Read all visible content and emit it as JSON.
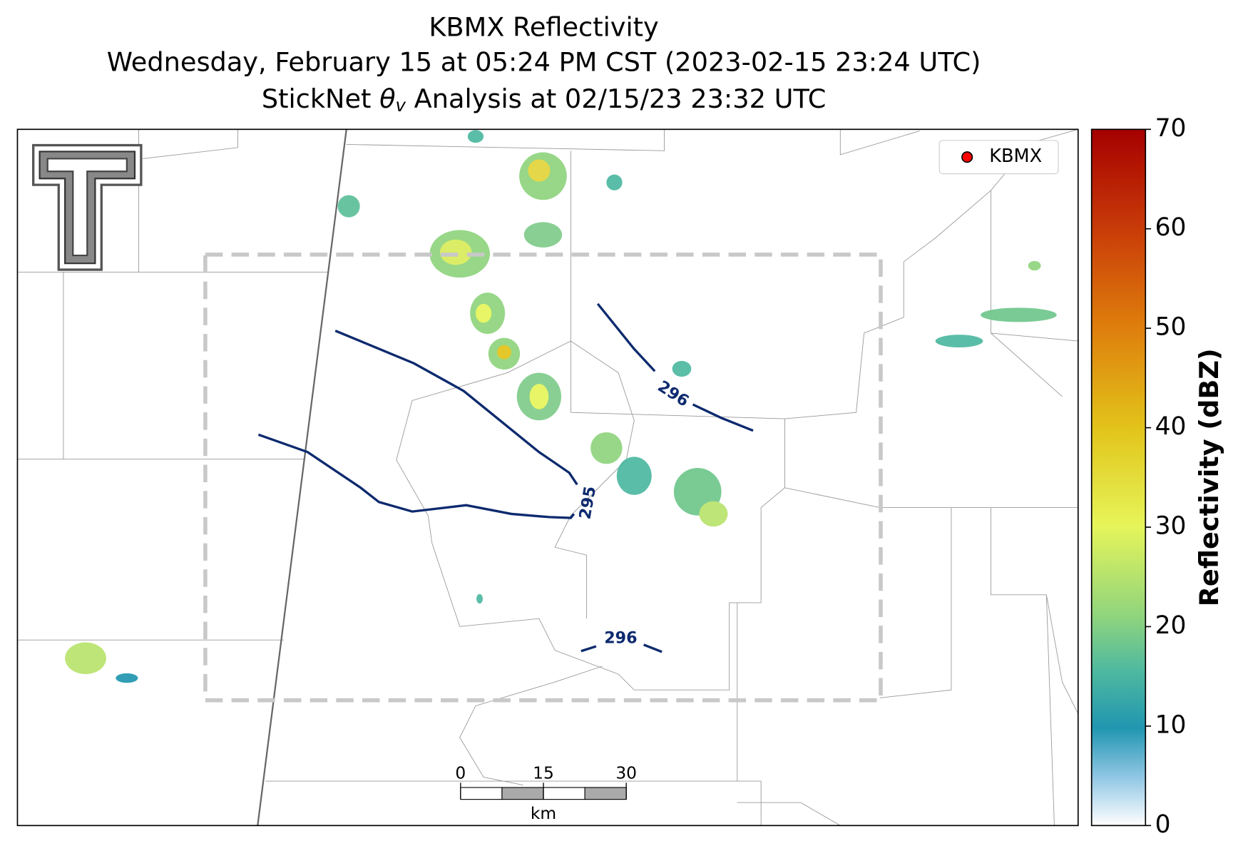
{
  "header": {
    "title_line1": "KBMX Reflectivity",
    "title_line2": "Wednesday, February 15 at 05:24 PM CST (2023-02-15 23:24 UTC)",
    "title_line3": {
      "prefix": "StickNet ",
      "symbol": "θ",
      "subscript": "v",
      "suffix": " Analysis at 02/15/23 23:32 UTC"
    }
  },
  "legend": {
    "label": "KBMX"
  },
  "colorbar": {
    "label": "Reflectivity (dBZ)",
    "lim": [
      0,
      70
    ],
    "ticks": [
      0,
      10,
      20,
      30,
      40,
      50,
      60,
      70
    ]
  },
  "scale_bar": {
    "ticks": [
      0,
      15,
      30
    ],
    "unit": "km"
  },
  "contours": [
    {
      "label": "295"
    },
    {
      "label": "296"
    },
    {
      "label": "296"
    }
  ]
}
